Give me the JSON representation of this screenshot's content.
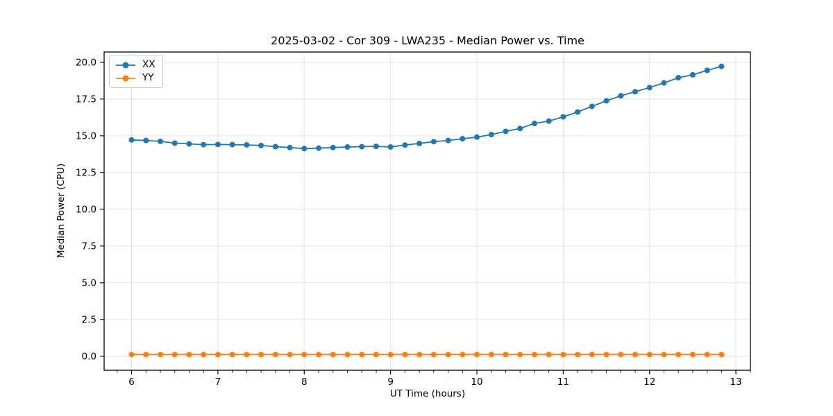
{
  "chart_data": {
    "type": "line",
    "title": "2025-03-02 - Cor 309 - LWA235 - Median Power vs. Time",
    "xlabel": "UT Time (hours)",
    "ylabel": "Median Power (CPU)",
    "xlim": [
      5.682,
      13.168
    ],
    "ylim": [
      -0.95,
      20.7
    ],
    "x_major_ticks": [
      6,
      7,
      8,
      9,
      10,
      11,
      12,
      13
    ],
    "y_major_ticks": [
      0.0,
      2.5,
      5.0,
      7.5,
      10.0,
      12.5,
      15.0,
      17.5,
      20.0
    ],
    "x_minor_step": 0.166667,
    "grid": true,
    "legend_position": "upper-left",
    "x": [
      6.0,
      6.167,
      6.333,
      6.5,
      6.667,
      6.833,
      7.0,
      7.167,
      7.333,
      7.5,
      7.667,
      7.833,
      8.0,
      8.167,
      8.333,
      8.5,
      8.667,
      8.833,
      9.0,
      9.167,
      9.333,
      9.5,
      9.667,
      9.833,
      10.0,
      10.167,
      10.333,
      10.5,
      10.667,
      10.833,
      11.0,
      11.167,
      11.333,
      11.5,
      11.667,
      11.833,
      12.0,
      12.167,
      12.333,
      12.5,
      12.667,
      12.833
    ],
    "series": [
      {
        "name": "XX",
        "color": "#1f77b4",
        "values": [
          14.72,
          14.68,
          14.62,
          14.5,
          14.45,
          14.4,
          14.41,
          14.4,
          14.38,
          14.34,
          14.26,
          14.2,
          14.13,
          14.16,
          14.2,
          14.24,
          14.26,
          14.28,
          14.24,
          14.37,
          14.48,
          14.6,
          14.68,
          14.8,
          14.91,
          15.08,
          15.3,
          15.5,
          15.84,
          16.0,
          16.29,
          16.62,
          17.0,
          17.38,
          17.72,
          18.0,
          18.28,
          18.6,
          18.95,
          19.15,
          19.45,
          19.72
        ]
      },
      {
        "name": "YY",
        "color": "#ff7f0e",
        "values": [
          0.12,
          0.12,
          0.12,
          0.12,
          0.12,
          0.12,
          0.12,
          0.12,
          0.12,
          0.12,
          0.12,
          0.12,
          0.12,
          0.12,
          0.12,
          0.12,
          0.12,
          0.12,
          0.12,
          0.12,
          0.12,
          0.12,
          0.12,
          0.12,
          0.12,
          0.12,
          0.12,
          0.12,
          0.12,
          0.12,
          0.12,
          0.12,
          0.12,
          0.12,
          0.12,
          0.12,
          0.12,
          0.12,
          0.12,
          0.12,
          0.12,
          0.12
        ]
      }
    ]
  },
  "style": {
    "grid_color": "#e4e4e4",
    "spine_color": "#000000",
    "tick_color": "#000000",
    "background": "#ffffff"
  }
}
